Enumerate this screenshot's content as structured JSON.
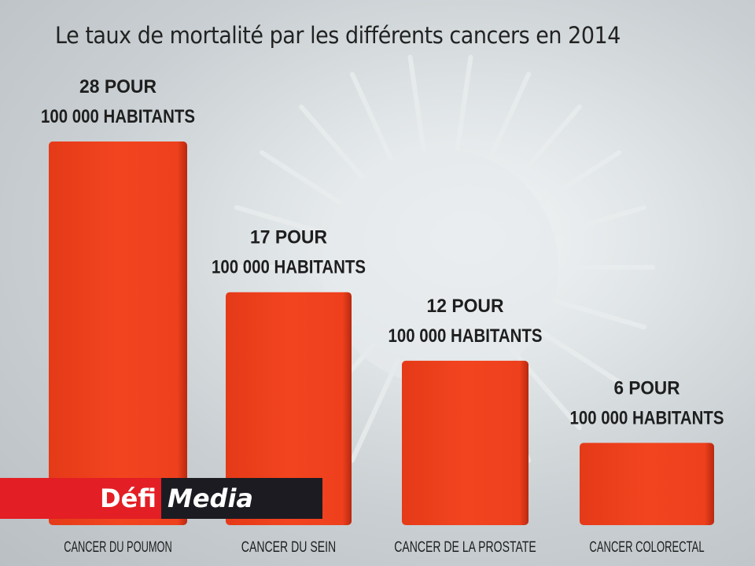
{
  "chart_data": {
    "type": "bar",
    "title": "Le taux de mortalité par les différents cancers en 2014",
    "xlabel": "",
    "ylabel": "",
    "ylim": [
      0,
      28
    ],
    "grid": false,
    "categories": [
      "CANCER DU POUMON",
      "CANCER DU SEIN",
      "CANCER DE LA PROSTATE",
      "CANCER COLORECTAL"
    ],
    "values": [
      28,
      17,
      12,
      6
    ],
    "value_labels": [
      [
        "28 POUR",
        "100 000 HABITANTS"
      ],
      [
        "17 POUR",
        "100 000 HABITANTS"
      ],
      [
        "12 POUR",
        "100 000 HABITANTS"
      ],
      [
        "6 POUR",
        "100 000 HABITANTS"
      ]
    ],
    "unit": "pour 100 000 habitants",
    "bar_color": "#f0411e"
  },
  "logo": {
    "part1": "Défi",
    "part2": "Media",
    "colors": {
      "red": "#e31e24",
      "dark": "#1d1b22"
    }
  }
}
